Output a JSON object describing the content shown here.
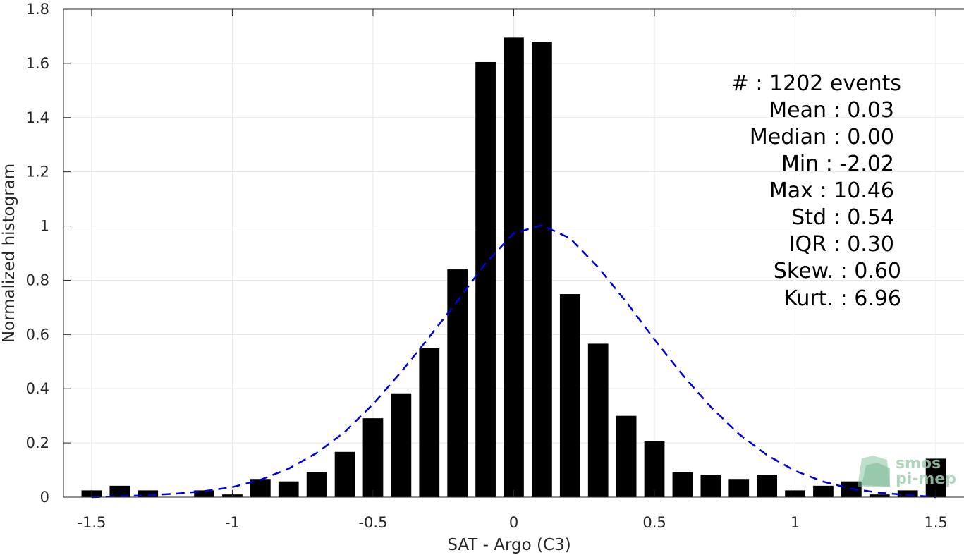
{
  "chart_data": {
    "type": "bar",
    "xlabel": "SAT - Argo (C3)",
    "ylabel": "Normalized histogram",
    "xlim": [
      -1.6,
      1.6
    ],
    "ylim": [
      0,
      1.8
    ],
    "x_ticks": [
      -1.5,
      -1,
      -0.5,
      0,
      0.5,
      1,
      1.5
    ],
    "x_tick_labels": [
      "-1.5",
      "-1",
      "-0.5",
      "0",
      "0.5",
      "1",
      "1.5"
    ],
    "y_ticks": [
      0,
      0.2,
      0.4,
      0.6,
      0.8,
      1,
      1.2,
      1.4,
      1.6,
      1.8
    ],
    "y_tick_labels": [
      "0",
      "0.2",
      "0.4",
      "0.6",
      "0.8",
      "1",
      "1.2",
      "1.4",
      "1.6",
      "1.8"
    ],
    "grid": true,
    "bin_width": 0.1,
    "bar_color": "#000000",
    "bars": {
      "x": [
        -1.5,
        -1.4,
        -1.3,
        -1.2,
        -1.1,
        -1.0,
        -0.9,
        -0.8,
        -0.7,
        -0.6,
        -0.5,
        -0.4,
        -0.3,
        -0.2,
        -0.1,
        0.0,
        0.1,
        0.2,
        0.3,
        0.4,
        0.5,
        0.6,
        0.7,
        0.8,
        0.9,
        1.0,
        1.1,
        1.2,
        1.3,
        1.4,
        1.5
      ],
      "values": [
        0.025,
        0.042,
        0.025,
        0,
        0.025,
        0.01,
        0.067,
        0.058,
        0.092,
        0.167,
        0.291,
        0.383,
        0.549,
        0.84,
        1.605,
        1.695,
        1.68,
        0.749,
        0.566,
        0.3,
        0.208,
        0.092,
        0.083,
        0.067,
        0.083,
        0.025,
        0.042,
        0.058,
        0.01,
        0.025,
        0.142
      ]
    },
    "fit_curve": {
      "style": "dashed",
      "color": "#0000dd",
      "x": [
        -1.5,
        -1.4,
        -1.3,
        -1.2,
        -1.1,
        -1.0,
        -0.9,
        -0.8,
        -0.7,
        -0.6,
        -0.5,
        -0.4,
        -0.3,
        -0.2,
        -0.1,
        0.0,
        0.1,
        0.2,
        0.3,
        0.4,
        0.5,
        0.6,
        0.7,
        0.8,
        0.9,
        1.0,
        1.1,
        1.2,
        1.3,
        1.4,
        1.5
      ],
      "y": [
        0.0,
        0.003,
        0.007,
        0.013,
        0.022,
        0.037,
        0.064,
        0.105,
        0.163,
        0.241,
        0.343,
        0.462,
        0.591,
        0.724,
        0.863,
        0.973,
        1.003,
        0.955,
        0.848,
        0.72,
        0.582,
        0.451,
        0.333,
        0.233,
        0.155,
        0.097,
        0.057,
        0.031,
        0.016,
        0.008,
        0.0
      ]
    },
    "annotations": [
      "#  : 1202 events",
      "Mean : 0.03",
      "Median : 0.00",
      "Min : -2.02",
      "Max : 10.46",
      "Std : 0.54",
      "IQR : 0.30",
      "Skew. : 0.60",
      "Kurt. : 6.96"
    ]
  },
  "logo": {
    "lines": [
      "smos",
      "pi-mep"
    ],
    "color": "#9fcfb2"
  }
}
